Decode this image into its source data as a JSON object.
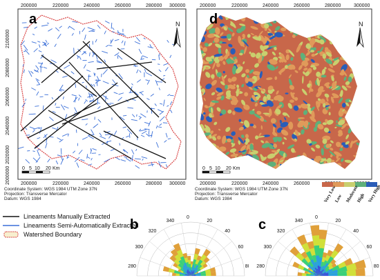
{
  "panels": {
    "a": {
      "letter": "a"
    },
    "d": {
      "letter": "d"
    },
    "b": {
      "letter": "b"
    },
    "c": {
      "letter": "c"
    }
  },
  "axes": {
    "easting_ticks": [
      "200000",
      "220000",
      "240000",
      "260000",
      "280000",
      "300000"
    ],
    "northing_ticks": [
      "2100000",
      "2080000",
      "2060000",
      "2040000",
      "2020000",
      "2000000"
    ]
  },
  "north_label": "N",
  "scalebar": {
    "labels": [
      "0",
      "5",
      "10",
      "20",
      "Km"
    ]
  },
  "metadata": {
    "line1": "Coordinate System: WGS 1984 UTM Zone 37N",
    "line2": "Projection: Transverse Mercator",
    "line3": "Datum: WGS 1984"
  },
  "legend": {
    "items": [
      {
        "label": "Lineaments Manually Extracted",
        "color": "#111111"
      },
      {
        "label": "Lineaments Semi-Automatically Extracted",
        "color": "#3a6fd8"
      },
      {
        "label": "Watershed Boundary",
        "color": "#d84040"
      }
    ]
  },
  "suitability": {
    "classes": [
      "Very Low",
      "Low",
      "Moderate",
      "High",
      "Very High"
    ],
    "colors": [
      "#c8674a",
      "#e09a5a",
      "#c9cf6e",
      "#5fb07a",
      "#2a5db8"
    ]
  },
  "rose": {
    "angle_labels": [
      "340",
      "320",
      "300",
      "280",
      "0",
      "20",
      "40",
      "60",
      "80"
    ]
  },
  "colors": {
    "watershed_red": "#d84040",
    "manual_black": "#111111",
    "semi_blue": "#3a6fd8",
    "frame": "#333333"
  }
}
